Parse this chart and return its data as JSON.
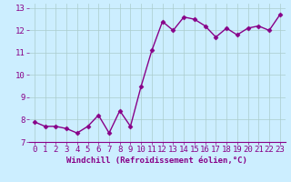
{
  "x": [
    0,
    1,
    2,
    3,
    4,
    5,
    6,
    7,
    8,
    9,
    10,
    11,
    12,
    13,
    14,
    15,
    16,
    17,
    18,
    19,
    20,
    21,
    22,
    23
  ],
  "y": [
    7.9,
    7.7,
    7.7,
    7.6,
    7.4,
    7.7,
    8.2,
    7.4,
    8.4,
    7.7,
    9.5,
    11.1,
    12.4,
    12.0,
    12.6,
    12.5,
    12.2,
    11.7,
    12.1,
    11.8,
    12.1,
    12.2,
    12.0,
    12.7
  ],
  "line_color": "#880088",
  "marker": "D",
  "marker_size": 2.5,
  "background_color": "#cceeff",
  "grid_color": "#aacccc",
  "xlabel": "Windchill (Refroidissement éolien,°C)",
  "xlim": [
    -0.5,
    23.5
  ],
  "ylim": [
    7.0,
    13.2
  ],
  "yticks": [
    7,
    8,
    9,
    10,
    11,
    12,
    13
  ],
  "xticks": [
    0,
    1,
    2,
    3,
    4,
    5,
    6,
    7,
    8,
    9,
    10,
    11,
    12,
    13,
    14,
    15,
    16,
    17,
    18,
    19,
    20,
    21,
    22,
    23
  ],
  "xlabel_fontsize": 6.5,
  "tick_fontsize": 6.5,
  "line_width": 1.0
}
